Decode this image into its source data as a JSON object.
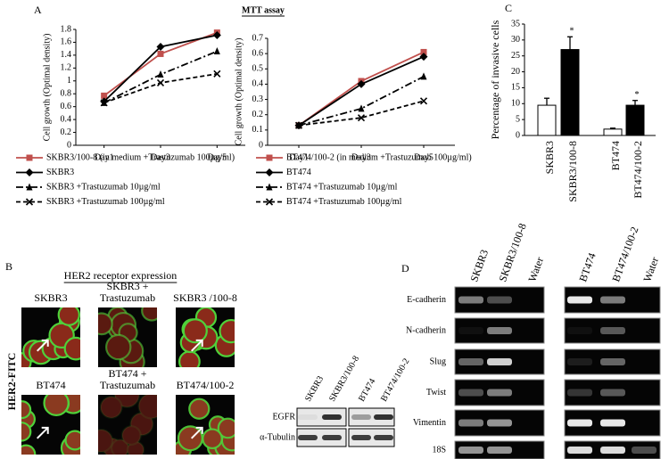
{
  "chart_data": [
    {
      "type": "line",
      "label": "A",
      "title": "MTT assay",
      "y_label": "Cell growth (Optimal density)",
      "categories": [
        "Day1",
        "Day3",
        "Day5"
      ],
      "ylim": [
        0,
        1.8
      ],
      "yticks": [
        0,
        0.2,
        0.4,
        0.6,
        0.8,
        1,
        1.2,
        1.4,
        1.6,
        1.8
      ],
      "series": [
        {
          "name": "SKBR3/100-8 (in medium +Trastuzumab 100µg/ml)",
          "color": "#c0504d",
          "marker": "square",
          "dash": "solid",
          "values": [
            0.77,
            1.42,
            1.75
          ]
        },
        {
          "name": "SKBR3",
          "color": "#000000",
          "marker": "diamond",
          "dash": "solid",
          "values": [
            0.68,
            1.53,
            1.71
          ]
        },
        {
          "name": " SKBR3 +Trastuzumab 10µg/ml",
          "color": "#000000",
          "marker": "triangle",
          "dash": "dashdot",
          "values": [
            0.66,
            1.1,
            1.46
          ]
        },
        {
          "name": "SKBR3 +Trastuzumab 100µg/ml",
          "color": "#000000",
          "marker": "x",
          "dash": "dashed",
          "values": [
            0.66,
            0.97,
            1.11
          ]
        }
      ]
    },
    {
      "type": "line",
      "y_label": "Cell growth (Optimal density)",
      "categories": [
        "Day1",
        "Day3",
        "Day5"
      ],
      "ylim": [
        0,
        0.7
      ],
      "yticks": [
        0,
        0.1,
        0.2,
        0.3,
        0.4,
        0.5,
        0.6,
        0.7
      ],
      "series": [
        {
          "name": "BT474/100-2 (in medium +Trastuzumab 100µg/ml)",
          "color": "#c0504d",
          "marker": "square",
          "dash": "solid",
          "values": [
            0.13,
            0.42,
            0.61
          ]
        },
        {
          "name": "BT474",
          "color": "#000000",
          "marker": "diamond",
          "dash": "solid",
          "values": [
            0.13,
            0.4,
            0.58
          ]
        },
        {
          "name": " BT474 +Trastuzumab 10µg/ml",
          "color": "#000000",
          "marker": "triangle",
          "dash": "dashdot",
          "values": [
            0.13,
            0.24,
            0.45
          ]
        },
        {
          "name": "BT474 +Trastuzumab 100µg/ml",
          "color": "#000000",
          "marker": "x",
          "dash": "dashed",
          "values": [
            0.13,
            0.18,
            0.29
          ]
        }
      ]
    },
    {
      "type": "bar",
      "label": "C",
      "y_label": "Percentage of invasive cells",
      "categories": [
        "SKBR3",
        "SKBR3/100-8",
        "BT474",
        "BT474/100-2"
      ],
      "values": [
        9.5,
        27,
        2,
        9.5
      ],
      "errors": [
        2.2,
        4,
        0.3,
        1.5
      ],
      "colors": [
        "#ffffff",
        "#000000",
        "#ffffff",
        "#000000"
      ],
      "significance": [
        null,
        "*",
        null,
        "*"
      ],
      "ylim": [
        0,
        35
      ],
      "yticks": [
        0,
        5,
        10,
        15,
        20,
        25,
        30,
        35
      ]
    }
  ],
  "panel_b": {
    "label": "B",
    "title": "HER2 receptor expression",
    "stain": "HER2-FITC",
    "images": [
      [
        "SKBR3"
      ],
      [
        "SKBR3 +",
        "Trastuzumab"
      ],
      [
        "SKBR3 /100-8"
      ],
      [
        "BT474"
      ],
      [
        "BT474 +",
        "Trastuzumab"
      ],
      [
        "BT474/100-2"
      ]
    ],
    "western": {
      "lanes": [
        "SKBR3",
        "SKBR3/100-8",
        "BT474",
        "BT474/100-2"
      ],
      "rows": [
        "EGFR",
        "α-Tubulin"
      ]
    }
  },
  "panel_d": {
    "label": "D",
    "lanes": [
      "SKBR3",
      "SKBR3/100-8",
      "Water",
      "BT474",
      "BT474/100-2",
      "Water"
    ],
    "rows": [
      "E-cadherin",
      "N-cadherin",
      "Slug",
      "Twist",
      "Vimentin",
      "18S"
    ]
  }
}
